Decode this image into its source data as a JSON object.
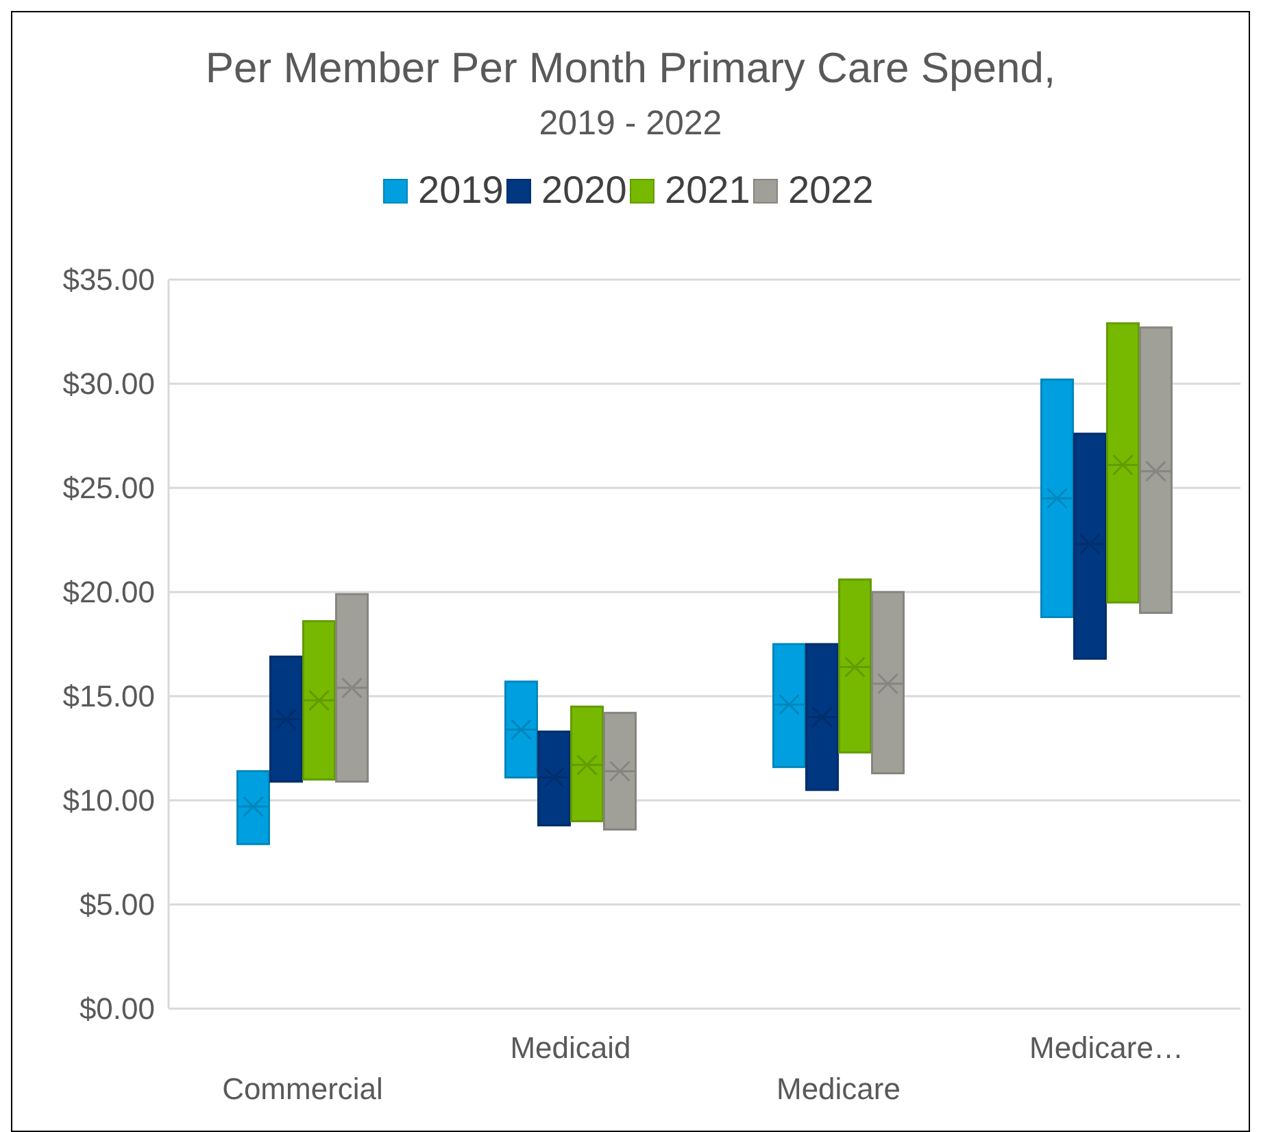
{
  "chart_data": {
    "type": "box",
    "title": "Per Member Per Month Primary Care Spend,",
    "subtitle": "2019 - 2022",
    "categories": [
      "Commercial",
      "Medicaid",
      "Medicare",
      "Medicare…"
    ],
    "ylim": [
      0,
      35
    ],
    "yticks": [
      {
        "value": 0,
        "label": "$0.00"
      },
      {
        "value": 5,
        "label": "$5.00"
      },
      {
        "value": 10,
        "label": "$10.00"
      },
      {
        "value": 15,
        "label": "$15.00"
      },
      {
        "value": 20,
        "label": "$20.00"
      },
      {
        "value": 25,
        "label": "$25.00"
      },
      {
        "value": 30,
        "label": "$30.00"
      },
      {
        "value": 35,
        "label": "$35.00"
      }
    ],
    "grid": "y",
    "legend": "top",
    "marker": "cross",
    "series": [
      {
        "name": "2019",
        "color": "#00a0e0",
        "boxes": [
          {
            "low": 7.9,
            "q1": 7.9,
            "median": 9.7,
            "mean": 9.7,
            "q3": 11.4,
            "high": 11.4
          },
          {
            "low": 11.1,
            "q1": 11.1,
            "median": 13.4,
            "mean": 13.4,
            "q3": 15.7,
            "high": 15.7
          },
          {
            "low": 11.6,
            "q1": 11.6,
            "median": 14.6,
            "mean": 14.6,
            "q3": 17.5,
            "high": 17.5
          },
          {
            "low": 18.8,
            "q1": 18.8,
            "median": 24.5,
            "mean": 24.5,
            "q3": 30.2,
            "high": 30.2
          }
        ]
      },
      {
        "name": "2020",
        "color": "#003781",
        "boxes": [
          {
            "low": 10.9,
            "q1": 10.9,
            "median": 13.9,
            "mean": 13.9,
            "q3": 16.9,
            "high": 16.9
          },
          {
            "low": 8.8,
            "q1": 8.8,
            "median": 11.1,
            "mean": 11.1,
            "q3": 13.3,
            "high": 13.3
          },
          {
            "low": 10.5,
            "q1": 10.5,
            "median": 14.0,
            "mean": 14.0,
            "q3": 17.5,
            "high": 17.5
          },
          {
            "low": 16.8,
            "q1": 16.8,
            "median": 22.3,
            "mean": 22.3,
            "q3": 27.6,
            "high": 27.6
          }
        ]
      },
      {
        "name": "2021",
        "color": "#76b900",
        "boxes": [
          {
            "low": 11.0,
            "q1": 11.0,
            "median": 14.8,
            "mean": 14.8,
            "q3": 18.6,
            "high": 18.6
          },
          {
            "low": 9.0,
            "q1": 9.0,
            "median": 11.7,
            "mean": 11.7,
            "q3": 14.5,
            "high": 14.5
          },
          {
            "low": 12.3,
            "q1": 12.3,
            "median": 16.4,
            "mean": 16.4,
            "q3": 20.6,
            "high": 20.6
          },
          {
            "low": 19.5,
            "q1": 19.5,
            "median": 26.1,
            "mean": 26.1,
            "q3": 32.9,
            "high": 32.9
          }
        ]
      },
      {
        "name": "2022",
        "color": "#a09f98",
        "boxes": [
          {
            "low": 10.9,
            "q1": 10.9,
            "median": 15.4,
            "mean": 15.4,
            "q3": 19.9,
            "high": 19.9
          },
          {
            "low": 8.6,
            "q1": 8.6,
            "median": 11.4,
            "mean": 11.4,
            "q3": 14.2,
            "high": 14.2
          },
          {
            "low": 11.3,
            "q1": 11.3,
            "median": 15.6,
            "mean": 15.6,
            "q3": 20.0,
            "high": 20.0
          },
          {
            "low": 19.0,
            "q1": 19.0,
            "median": 25.8,
            "mean": 25.8,
            "q3": 32.7,
            "high": 32.7
          }
        ]
      }
    ]
  }
}
